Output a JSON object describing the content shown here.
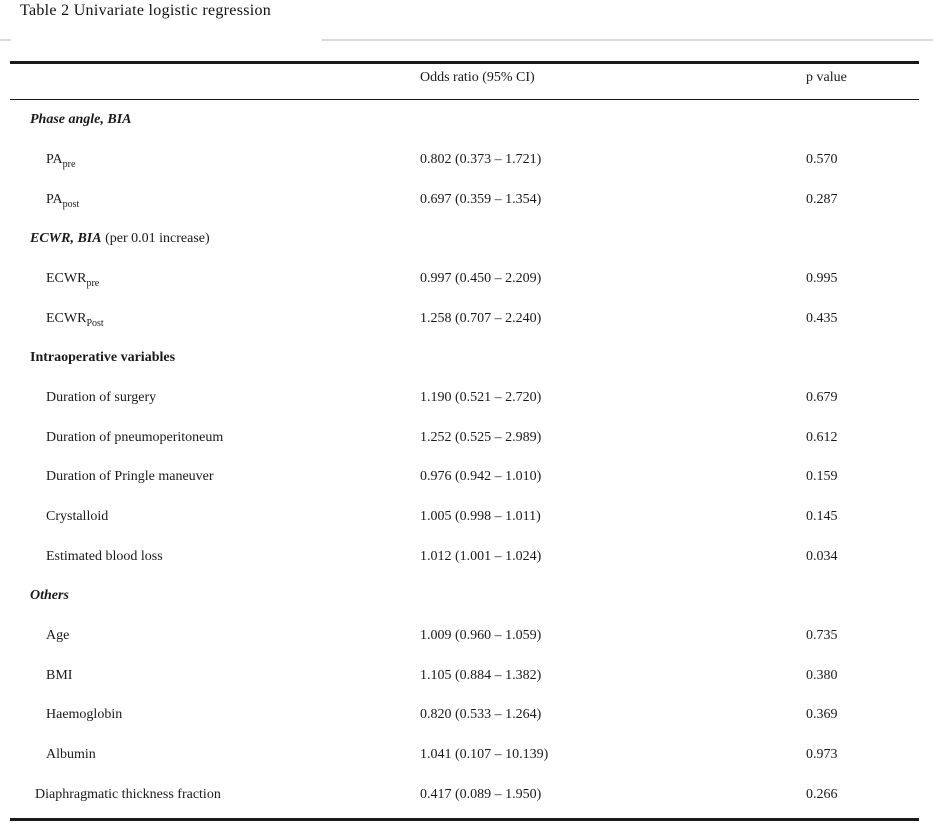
{
  "title": "Table 2 Univariate logistic regression",
  "table": {
    "columns": [
      "Odds ratio (95% CI)",
      "p value"
    ],
    "rows": [
      {
        "type": "section",
        "label": "Phase angle, BIA",
        "suffix": ""
      },
      {
        "type": "data",
        "label": "PA",
        "sub": "pre",
        "or": "0.802 (0.373 – 1.721)",
        "p": "0.570"
      },
      {
        "type": "data",
        "label": "PA",
        "sub": "post",
        "or": "0.697 (0.359 – 1.354)",
        "p": "0.287"
      },
      {
        "type": "section",
        "label": "ECWR, BIA",
        "suffix": " (per 0.01 increase)"
      },
      {
        "type": "data",
        "label": "ECWR",
        "sub": "pre",
        "or": "0.997 (0.450 – 2.209)",
        "p": "0.995"
      },
      {
        "type": "data",
        "label": "ECWR",
        "sub": "Post",
        "or": "1.258 (0.707 – 2.240)",
        "p": "0.435"
      },
      {
        "type": "section",
        "label": "Intraoperative variables",
        "suffix": ""
      },
      {
        "type": "data",
        "label": "Duration of surgery",
        "sub": "",
        "or": "1.190 (0.521 – 2.720)",
        "p": "0.679"
      },
      {
        "type": "data",
        "label": "Duration of pneumoperitoneum",
        "sub": "",
        "or": "1.252 (0.525 – 2.989)",
        "p": "0.612"
      },
      {
        "type": "data",
        "label": "Duration of Pringle maneuver",
        "sub": "",
        "or": "0.976 (0.942 – 1.010)",
        "p": "0.159"
      },
      {
        "type": "data",
        "label": "Crystalloid",
        "sub": "",
        "or": "1.005 (0.998 – 1.011)",
        "p": "0.145"
      },
      {
        "type": "data",
        "label": "Estimated blood loss",
        "sub": "",
        "or": "1.012 (1.001 – 1.024)",
        "p": "0.034"
      },
      {
        "type": "section",
        "label": "Others",
        "suffix": ""
      },
      {
        "type": "data",
        "label": "Age",
        "sub": "",
        "or": "1.009 (0.960 – 1.059)",
        "p": "0.735"
      },
      {
        "type": "data",
        "label": "BMI",
        "sub": "",
        "or": "1.105 (0.884 – 1.382)",
        "p": "0.380"
      },
      {
        "type": "data",
        "label": "Haemoglobin",
        "sub": "",
        "or": "0.820 (0.533 – 1.264)",
        "p": "0.369"
      },
      {
        "type": "data",
        "label": "Albumin",
        "sub": "",
        "or": "1.041 (0.107 – 10.139)",
        "p": "0.973"
      },
      {
        "type": "data",
        "label": "Diaphragmatic thickness fraction",
        "sub": "",
        "or": "0.417 (0.089 – 1.950)",
        "p": "0.266"
      }
    ]
  }
}
